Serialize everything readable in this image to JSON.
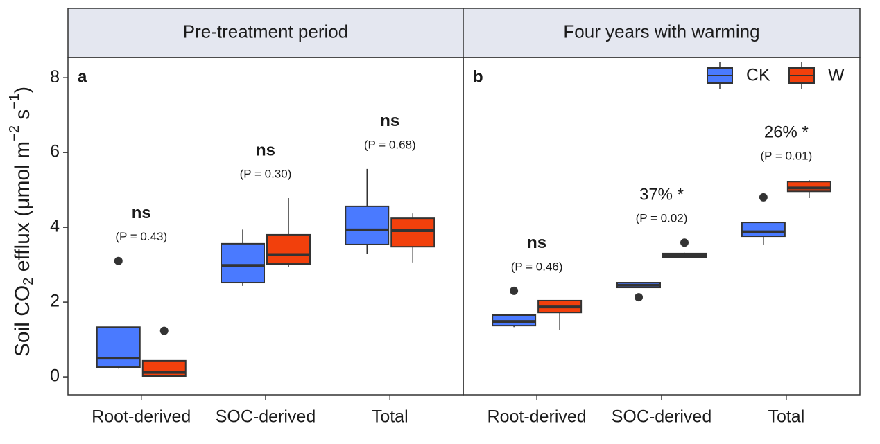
{
  "chart_data": [
    {
      "type": "box",
      "title": "Pre-treatment period",
      "panel_label": "a",
      "ylabel": [
        "Soil CO",
        "2",
        " efflux (μmol m",
        "−2",
        " s",
        "−1",
        ")"
      ],
      "categories": [
        "Root-derived",
        "SOC-derived",
        "Total"
      ],
      "ylim": [
        -0.48,
        8.54
      ],
      "yticks": [
        0,
        2,
        4,
        6,
        8
      ],
      "series": [
        {
          "name": "CK",
          "color": "#4a7aff",
          "values": [
            {
              "min": 0.22,
              "q1": 0.26,
              "median": 0.5,
              "q3": 1.33,
              "max": 1.33,
              "outliers": [
                3.1
              ]
            },
            {
              "min": 2.43,
              "q1": 2.52,
              "median": 2.98,
              "q3": 3.56,
              "max": 3.94,
              "outliers": []
            },
            {
              "min": 3.28,
              "q1": 3.54,
              "median": 3.93,
              "q3": 4.56,
              "max": 5.56,
              "outliers": []
            }
          ]
        },
        {
          "name": "W",
          "color": "#f2400c",
          "values": [
            {
              "min": 0.02,
              "q1": 0.02,
              "median": 0.12,
              "q3": 0.43,
              "max": 0.43,
              "outliers": [
                1.23
              ]
            },
            {
              "min": 2.93,
              "q1": 3.02,
              "median": 3.27,
              "q3": 3.8,
              "max": 4.78,
              "outliers": []
            },
            {
              "min": 3.06,
              "q1": 3.48,
              "median": 3.91,
              "q3": 4.24,
              "max": 4.37,
              "outliers": []
            }
          ]
        }
      ],
      "annotations": [
        {
          "text": "ns",
          "p": "(P = 0.43)"
        },
        {
          "text": "ns",
          "p": "(P = 0.30)"
        },
        {
          "text": "ns",
          "p": "(P = 0.68)"
        }
      ]
    },
    {
      "type": "box",
      "title": "Four years with warming",
      "panel_label": "b",
      "categories": [
        "Root-derived",
        "SOC-derived",
        "Total"
      ],
      "ylim": [
        -0.48,
        8.54
      ],
      "legend": "top-right",
      "series": [
        {
          "name": "CK",
          "color": "#4a7aff",
          "values": [
            {
              "min": 1.33,
              "q1": 1.37,
              "median": 1.48,
              "q3": 1.65,
              "max": 1.65,
              "outliers": [
                2.3
              ]
            },
            {
              "min": 2.38,
              "q1": 2.39,
              "median": 2.45,
              "q3": 2.52,
              "max": 2.52,
              "outliers": [
                2.13
              ]
            },
            {
              "min": 3.54,
              "q1": 3.76,
              "median": 3.88,
              "q3": 4.13,
              "max": 4.13,
              "outliers": [
                4.8
              ]
            }
          ]
        },
        {
          "name": "W",
          "color": "#f2400c",
          "values": [
            {
              "min": 1.26,
              "q1": 1.72,
              "median": 1.87,
              "q3": 2.04,
              "max": 2.04,
              "outliers": []
            },
            {
              "min": 3.18,
              "q1": 3.2,
              "median": 3.25,
              "q3": 3.3,
              "max": 3.32,
              "outliers": [
                3.59
              ]
            },
            {
              "min": 4.78,
              "q1": 4.96,
              "median": 5.05,
              "q3": 5.22,
              "max": 5.26,
              "outliers": []
            }
          ]
        }
      ],
      "annotations": [
        {
          "text": "ns",
          "p": "(P = 0.46)"
        },
        {
          "text": "37% *",
          "p": "(P = 0.02)"
        },
        {
          "text": "26% *",
          "p": "(P = 0.01)"
        }
      ]
    }
  ]
}
